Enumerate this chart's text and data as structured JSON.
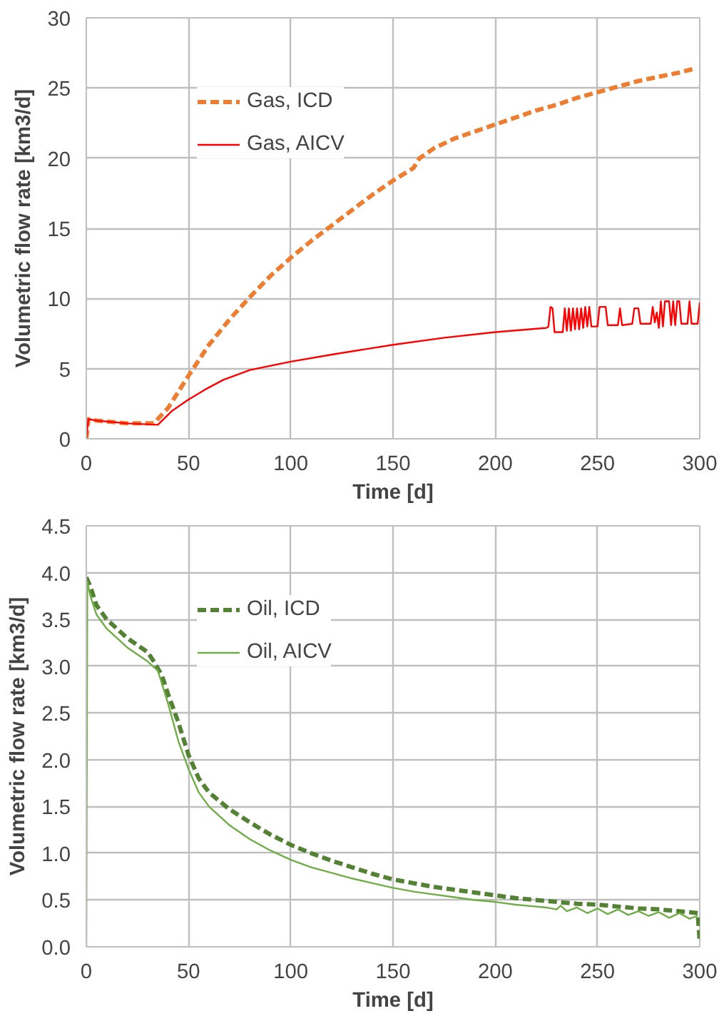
{
  "chart_data": [
    {
      "type": "line",
      "xlabel": "Time [d]",
      "ylabel": "Volumetric flow rate [km3/d]",
      "xlim": [
        0,
        300
      ],
      "ylim": [
        0,
        30
      ],
      "xticks": [
        0,
        50,
        100,
        150,
        200,
        250,
        300
      ],
      "yticks": [
        0,
        5,
        10,
        15,
        20,
        25,
        30
      ],
      "grid": true,
      "legend": "top left",
      "series": [
        {
          "name": "Gas, ICD",
          "color": "#ed7d31",
          "line_style": "dashed",
          "x": [
            0,
            1,
            5,
            20,
            33,
            40,
            50,
            60,
            70,
            80,
            90,
            100,
            110,
            120,
            130,
            140,
            150,
            160,
            163,
            170,
            180,
            190,
            200,
            210,
            220,
            230,
            240,
            250,
            260,
            270,
            280,
            290,
            298
          ],
          "values": [
            0,
            1.4,
            1.3,
            1.1,
            1.1,
            2.2,
            4.5,
            6.7,
            8.5,
            10.1,
            11.6,
            12.9,
            14.1,
            15.2,
            16.3,
            17.4,
            18.4,
            19.3,
            20.0,
            20.7,
            21.4,
            21.9,
            22.4,
            22.9,
            23.4,
            23.8,
            24.3,
            24.7,
            25.1,
            25.5,
            25.8,
            26.1,
            26.4
          ]
        },
        {
          "name": "Gas, AICV",
          "color": "#ff0000",
          "line_style": "solid",
          "x": [
            0,
            1,
            5,
            20,
            35,
            42,
            50,
            58,
            67,
            80,
            100,
            120,
            150,
            175,
            200,
            225,
            226,
            227,
            228,
            229,
            233,
            234,
            235,
            236,
            237,
            238,
            239,
            240,
            241,
            242,
            243,
            244,
            245,
            246,
            247,
            250,
            251,
            254,
            255,
            260,
            261,
            262,
            267,
            268,
            270,
            271,
            276,
            277,
            278,
            279,
            280,
            281,
            282,
            283,
            285,
            286,
            287,
            288,
            289,
            290,
            291,
            294,
            295,
            296,
            299,
            300
          ],
          "values": [
            0,
            1.4,
            1.3,
            1.1,
            1.0,
            2.0,
            2.8,
            3.5,
            4.2,
            4.9,
            5.5,
            6.0,
            6.7,
            7.2,
            7.6,
            7.9,
            8.0,
            9.4,
            9.3,
            7.6,
            7.6,
            9.3,
            7.7,
            9.3,
            7.7,
            9.3,
            7.8,
            9.3,
            7.8,
            9.3,
            7.9,
            9.4,
            8.0,
            9.4,
            8.0,
            8.0,
            9.4,
            9.4,
            8.1,
            8.1,
            9.3,
            8.1,
            8.2,
            9.3,
            9.3,
            8.2,
            8.2,
            9.4,
            8.3,
            9.0,
            7.9,
            9.8,
            8.0,
            9.8,
            9.8,
            8.1,
            9.8,
            8.1,
            9.8,
            9.8,
            8.2,
            8.2,
            9.8,
            8.2,
            8.2,
            9.7
          ]
        }
      ]
    },
    {
      "type": "line",
      "xlabel": "Time [d]",
      "ylabel": "Volumetric flow rate [km3/d]",
      "xlim": [
        0,
        300
      ],
      "ylim": [
        0,
        4.5
      ],
      "xticks": [
        0,
        50,
        100,
        150,
        200,
        250,
        300
      ],
      "yticks": [
        {
          "value": 0,
          "label": "0.0"
        },
        0.5,
        {
          "value": 1,
          "label": "1.0"
        },
        1.5,
        {
          "value": 2,
          "label": "2.0"
        },
        2.5,
        {
          "value": 3,
          "label": "3.0"
        },
        3.5,
        {
          "value": 4,
          "label": "4.0"
        },
        4.5
      ],
      "grid": true,
      "legend": "top left",
      "series": [
        {
          "name": "Oil, ICD",
          "color": "#548235",
          "line_style": "dashed",
          "x": [
            0,
            2,
            5,
            10,
            20,
            30,
            33,
            37,
            40,
            45,
            50,
            55,
            60,
            70,
            80,
            90,
            100,
            110,
            120,
            130,
            140,
            150,
            160,
            170,
            180,
            190,
            200,
            210,
            220,
            230,
            240,
            250,
            260,
            270,
            280,
            290,
            299,
            300
          ],
          "values": [
            3.95,
            3.85,
            3.65,
            3.5,
            3.3,
            3.15,
            3.05,
            2.9,
            2.7,
            2.4,
            2.05,
            1.8,
            1.65,
            1.47,
            1.33,
            1.2,
            1.09,
            1.0,
            0.92,
            0.85,
            0.78,
            0.72,
            0.68,
            0.64,
            0.61,
            0.58,
            0.55,
            0.52,
            0.5,
            0.48,
            0.46,
            0.45,
            0.43,
            0.41,
            0.4,
            0.38,
            0.36,
            0.05
          ]
        },
        {
          "name": "Oil, AICV",
          "color": "#70ad47",
          "line_style": "solid",
          "x": [
            0,
            0.5,
            2,
            5,
            10,
            20,
            30,
            35,
            40,
            45,
            50,
            55,
            60,
            70,
            80,
            90,
            100,
            110,
            120,
            130,
            140,
            150,
            160,
            170,
            180,
            190,
            200,
            210,
            220,
            225,
            230,
            232,
            235,
            240,
            245,
            250,
            255,
            260,
            265,
            270,
            275,
            280,
            285,
            290,
            295,
            299
          ],
          "values": [
            0,
            3.9,
            3.75,
            3.55,
            3.4,
            3.2,
            3.05,
            2.95,
            2.6,
            2.2,
            1.9,
            1.65,
            1.5,
            1.3,
            1.15,
            1.03,
            0.93,
            0.85,
            0.79,
            0.73,
            0.68,
            0.63,
            0.59,
            0.56,
            0.53,
            0.5,
            0.48,
            0.45,
            0.43,
            0.42,
            0.4,
            0.44,
            0.38,
            0.42,
            0.36,
            0.41,
            0.35,
            0.4,
            0.34,
            0.38,
            0.33,
            0.37,
            0.31,
            0.36,
            0.3,
            0.33
          ]
        }
      ]
    }
  ]
}
